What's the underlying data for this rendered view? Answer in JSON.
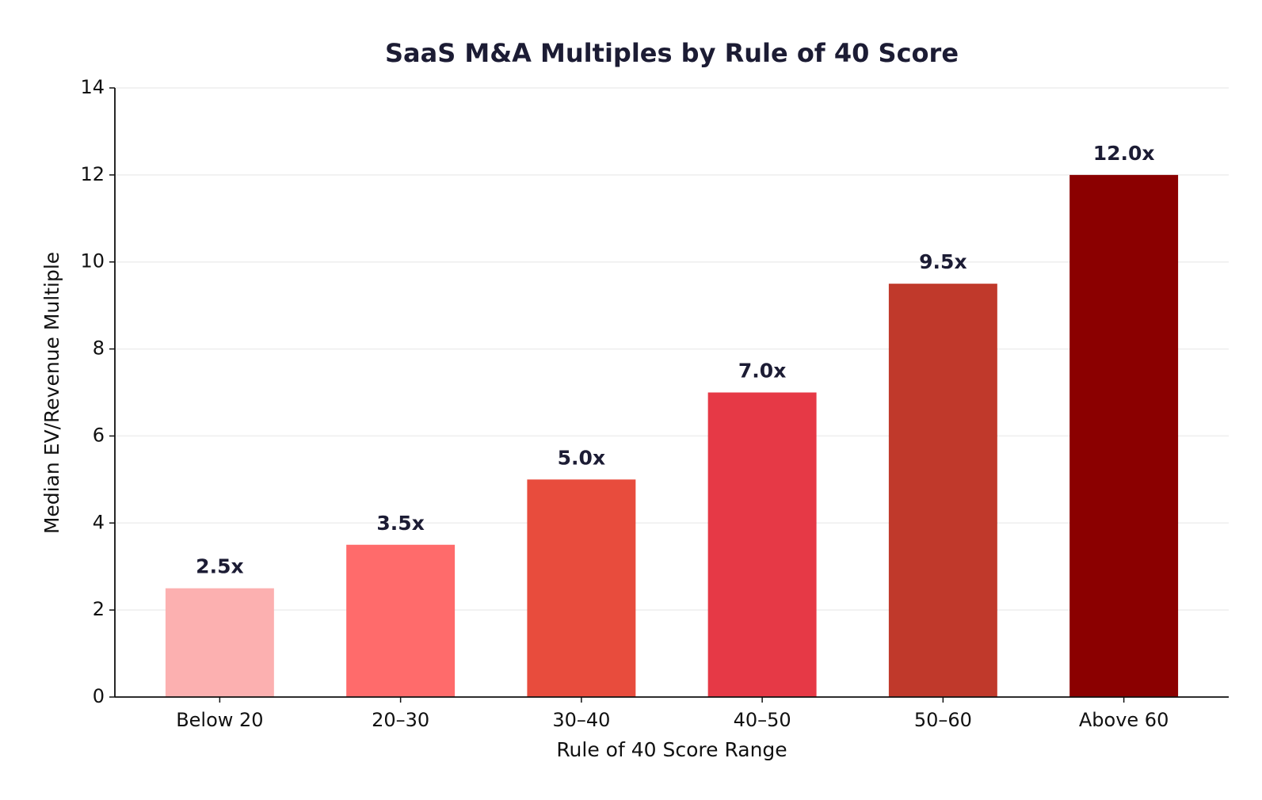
{
  "chart_data": {
    "type": "bar",
    "title": "SaaS M&A Multiples by Rule of 40 Score",
    "x_label": "Rule of 40 Score Range",
    "y_label": "Median EV/Revenue Multiple",
    "categories": [
      "Below 20",
      "20–30",
      "30–40",
      "40–50",
      "50–60",
      "Above 60"
    ],
    "values": [
      2.5,
      3.5,
      5.0,
      7.0,
      9.5,
      12.0
    ],
    "value_labels": [
      "2.5x",
      "3.5x",
      "5.0x",
      "7.0x",
      "9.5x",
      "12.0x"
    ],
    "colors": [
      "#fcb0b0",
      "#ff6b6b",
      "#e84c3d",
      "#e63946",
      "#c0392b",
      "#8b0000"
    ],
    "ylim": [
      0,
      14
    ],
    "yticks": [
      0,
      2,
      4,
      6,
      8,
      10,
      12,
      14
    ],
    "grid": true
  }
}
